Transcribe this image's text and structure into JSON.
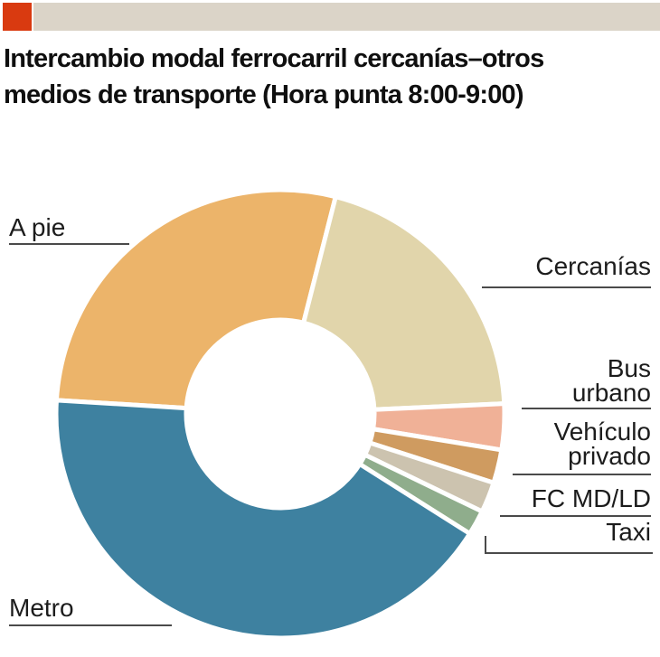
{
  "header": {
    "accent_color": "#d93a10",
    "bar_color": "#dbd4c8"
  },
  "title": {
    "line1": "Intercambio modal ferrocarril cercanías–otros",
    "line2": "medios de transporte (Hora punta 8:00-9:00)"
  },
  "chart_data": {
    "type": "pie",
    "subtype": "donut",
    "title": "Intercambio modal ferrocarril cercanías–otros medios de transporte (Hora punta 8:00-9:00)",
    "categories": [
      "A pie",
      "Cercanías",
      "Bus urbano",
      "Vehículo privado",
      "FC MD/LD",
      "Taxi",
      "Metro"
    ],
    "values": [
      28.0,
      20.3,
      3.3,
      2.4,
      2.2,
      1.8,
      42.0
    ],
    "values_estimated": true,
    "unit": "% (estimated from arc angles; no numeric labels shown)",
    "colors": [
      "#ecb46a",
      "#e1d5ab",
      "#f0b197",
      "#cf9b60",
      "#ccc3af",
      "#8fad8c",
      "#3e81a0"
    ],
    "start_angle_deg": 273.5,
    "direction": "clockwise",
    "legend_position": "labels-around-chart",
    "label_line_color": "#4a4a4a"
  }
}
